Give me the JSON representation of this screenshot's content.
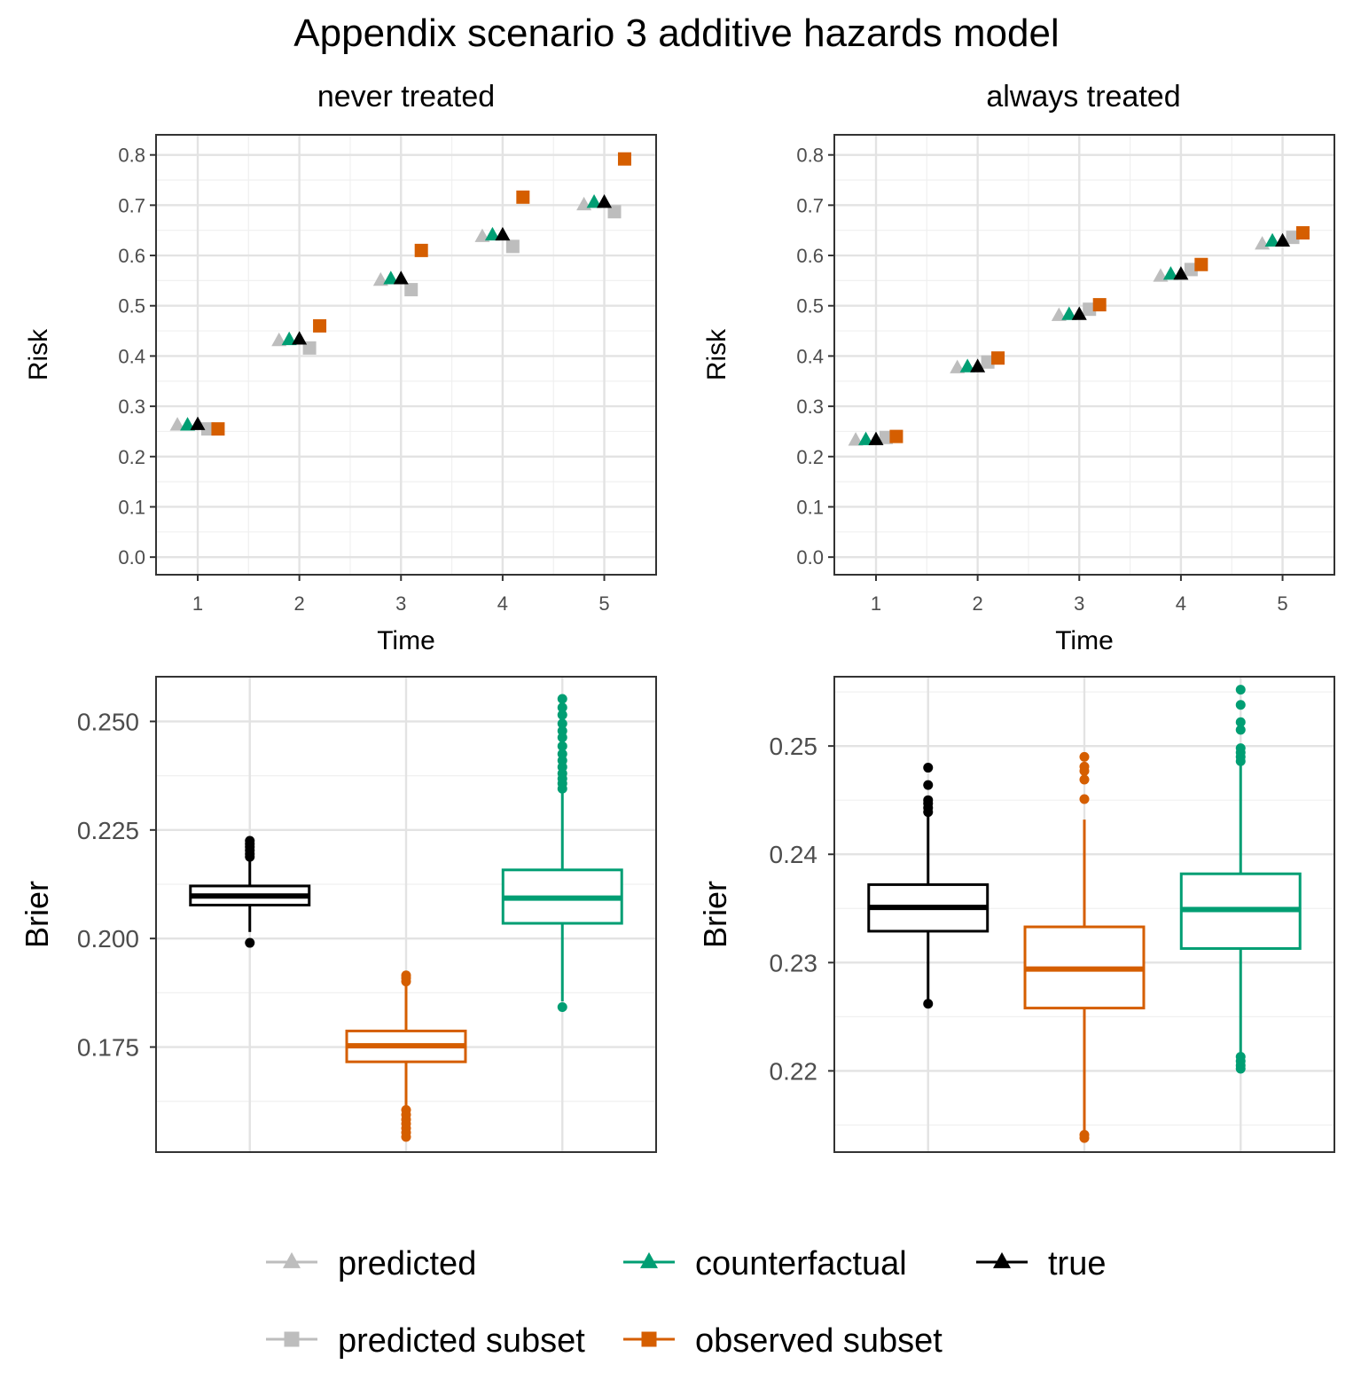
{
  "title": "Appendix scenario 3 additive hazards model",
  "colors": {
    "predicted": "#bdbdbd",
    "predicted_subset": "#bdbdbd",
    "counterfactual": "#009e73",
    "observed_subset": "#d55e00",
    "true": "#000000"
  },
  "legend": {
    "items": [
      {
        "key": "predicted",
        "label": "predicted",
        "shape": "triangle"
      },
      {
        "key": "counterfactual",
        "label": "counterfactual",
        "shape": "triangle"
      },
      {
        "key": "true",
        "label": "true",
        "shape": "triangle"
      },
      {
        "key": "predicted_subset",
        "label": "predicted subset",
        "shape": "square"
      },
      {
        "key": "observed_subset",
        "label": "observed subset",
        "shape": "square"
      }
    ]
  },
  "chart_data": [
    {
      "type": "scatter",
      "panel": "never treated",
      "xlabel": "Time",
      "ylabel": "Risk",
      "x_ticks": [
        1,
        2,
        3,
        4,
        5
      ],
      "y_ticks": [
        "0.0",
        "0.1",
        "0.2",
        "0.3",
        "0.4",
        "0.5",
        "0.6",
        "0.7",
        "0.8"
      ],
      "ylim": [
        -0.035,
        0.84
      ],
      "xlim": [
        0.59,
        5.51
      ],
      "grid": true,
      "series": [
        {
          "key": "predicted",
          "name": "predicted",
          "shape": "triangle",
          "dodge": -0.2,
          "values": [
            0.262,
            0.43,
            0.55,
            0.637,
            0.7
          ]
        },
        {
          "key": "counterfactual",
          "name": "counterfactual",
          "shape": "triangle",
          "dodge": -0.1,
          "values": [
            0.262,
            0.432,
            0.553,
            0.64,
            0.705
          ]
        },
        {
          "key": "true",
          "name": "true",
          "shape": "triangle",
          "dodge": 0.0,
          "values": [
            0.263,
            0.433,
            0.553,
            0.64,
            0.705
          ]
        },
        {
          "key": "predicted_subset",
          "name": "predicted subset",
          "shape": "square",
          "dodge": 0.1,
          "values": [
            0.255,
            0.416,
            0.532,
            0.618,
            0.687
          ]
        },
        {
          "key": "observed_subset",
          "name": "observed subset",
          "shape": "square",
          "dodge": 0.2,
          "values": [
            0.255,
            0.46,
            0.61,
            0.716,
            0.792
          ]
        }
      ]
    },
    {
      "type": "scatter",
      "panel": "always treated",
      "xlabel": "Time",
      "ylabel": "Risk",
      "x_ticks": [
        1,
        2,
        3,
        4,
        5
      ],
      "y_ticks": [
        "0.0",
        "0.1",
        "0.2",
        "0.3",
        "0.4",
        "0.5",
        "0.6",
        "0.7",
        "0.8"
      ],
      "ylim": [
        -0.035,
        0.84
      ],
      "xlim": [
        0.59,
        5.51
      ],
      "grid": true,
      "series": [
        {
          "key": "predicted",
          "name": "predicted",
          "shape": "triangle",
          "dodge": -0.2,
          "values": [
            0.232,
            0.376,
            0.48,
            0.558,
            0.622
          ]
        },
        {
          "key": "counterfactual",
          "name": "counterfactual",
          "shape": "triangle",
          "dodge": -0.1,
          "values": [
            0.233,
            0.378,
            0.482,
            0.562,
            0.628
          ]
        },
        {
          "key": "true",
          "name": "true",
          "shape": "triangle",
          "dodge": 0.0,
          "values": [
            0.233,
            0.378,
            0.482,
            0.562,
            0.628
          ]
        },
        {
          "key": "predicted_subset",
          "name": "predicted subset",
          "shape": "square",
          "dodge": 0.1,
          "values": [
            0.238,
            0.388,
            0.493,
            0.572,
            0.636
          ]
        },
        {
          "key": "observed_subset",
          "name": "observed subset",
          "shape": "square",
          "dodge": 0.2,
          "values": [
            0.24,
            0.396,
            0.502,
            0.582,
            0.645
          ]
        }
      ]
    },
    {
      "type": "box",
      "panel": "never treated",
      "ylabel": "Brier",
      "y_ticks": [
        "0.175",
        "0.200",
        "0.225",
        "0.250"
      ],
      "y_tick_values": [
        0.175,
        0.2,
        0.225,
        0.25
      ],
      "ylim": [
        0.1508,
        0.2603
      ],
      "grid": true,
      "boxes": [
        {
          "key": "true",
          "q1": 0.2077,
          "median": 0.2098,
          "q3": 0.2121,
          "whisker_low": 0.2015,
          "whisker_high": 0.2185,
          "outliers": [
            0.199,
            0.2188,
            0.2195,
            0.2203,
            0.2211,
            0.2218,
            0.2225
          ]
        },
        {
          "key": "observed_subset",
          "q1": 0.1716,
          "median": 0.1753,
          "q3": 0.1787,
          "whisker_low": 0.1612,
          "whisker_high": 0.1892,
          "outliers": [
            0.1543,
            0.1553,
            0.1563,
            0.1573,
            0.1583,
            0.1594,
            0.1605,
            0.1901,
            0.1909,
            0.1915
          ]
        },
        {
          "key": "counterfactual",
          "q1": 0.2035,
          "median": 0.2093,
          "q3": 0.2158,
          "whisker_low": 0.1855,
          "whisker_high": 0.2335,
          "outliers": [
            0.1842,
            0.2345,
            0.2357,
            0.2368,
            0.238,
            0.2395,
            0.241,
            0.2425,
            0.2443,
            0.2463,
            0.2478,
            0.2495,
            0.2515,
            0.2532,
            0.2552
          ]
        }
      ]
    },
    {
      "type": "box",
      "panel": "always treated",
      "ylabel": "Brier",
      "y_ticks": [
        "0.22",
        "0.23",
        "0.24",
        "0.25"
      ],
      "y_tick_values": [
        0.22,
        0.23,
        0.24,
        0.25
      ],
      "ylim": [
        0.2125,
        0.2564
      ],
      "grid": true,
      "boxes": [
        {
          "key": "true",
          "q1": 0.2329,
          "median": 0.2351,
          "q3": 0.2372,
          "whisker_low": 0.2265,
          "whisker_high": 0.2435,
          "outliers": [
            0.2262,
            0.2439,
            0.2443,
            0.2447,
            0.245,
            0.2464,
            0.248
          ]
        },
        {
          "key": "observed_subset",
          "q1": 0.2258,
          "median": 0.2294,
          "q3": 0.2333,
          "whisker_low": 0.2142,
          "whisker_high": 0.2432,
          "outliers": [
            0.2138,
            0.2141,
            0.2451,
            0.2469,
            0.2477,
            0.2481,
            0.249
          ]
        },
        {
          "key": "counterfactual",
          "q1": 0.2313,
          "median": 0.2349,
          "q3": 0.2382,
          "whisker_low": 0.2213,
          "whisker_high": 0.2482,
          "outliers": [
            0.2202,
            0.2205,
            0.2209,
            0.2213,
            0.2486,
            0.249,
            0.2494,
            0.2498,
            0.2515,
            0.2522,
            0.2538,
            0.2552
          ]
        }
      ]
    }
  ]
}
